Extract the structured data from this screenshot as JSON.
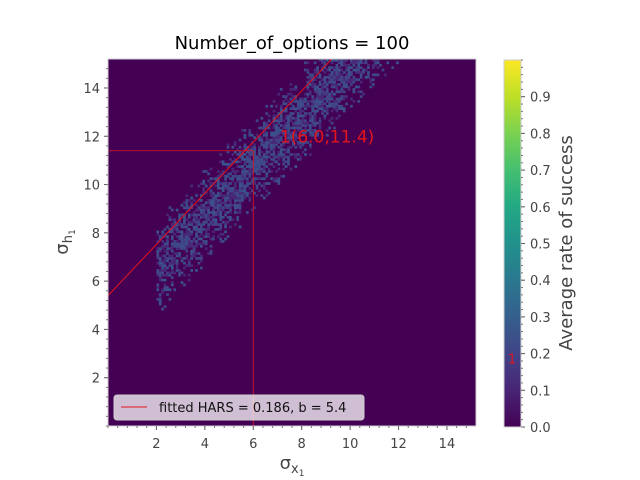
{
  "chart_data": {
    "type": "heatmap",
    "title": "Number_of_options = 100",
    "xlabel_base": "σ",
    "xlabel_sub": "x",
    "xlabel_subsub": "1",
    "ylabel_base": "σ",
    "ylabel_sub": "h",
    "ylabel_subsub": "1",
    "xlim": [
      0.0,
      15.2
    ],
    "ylim": [
      0.0,
      15.2
    ],
    "xticks": [
      2,
      4,
      6,
      8,
      10,
      12,
      14
    ],
    "yticks": [
      2,
      4,
      6,
      8,
      10,
      12,
      14
    ],
    "xtick_labels": [
      "2",
      "4",
      "6",
      "8",
      "10",
      "12",
      "14"
    ],
    "ytick_labels": [
      "2",
      "4",
      "6",
      "8",
      "10",
      "12",
      "14"
    ],
    "colormap": "viridis",
    "background_color": "#440154",
    "cloud_colors": [
      "#472c7a",
      "#3e4a89",
      "#482576",
      "#3b528b",
      "#414487"
    ],
    "density_band": {
      "center_slope": 1.06,
      "center_intercept": 4.4,
      "spread": 1.55,
      "x_min": 2.0,
      "x_max": 12.8
    },
    "fit_line": {
      "slope": 1.06,
      "intercept": 5.4,
      "color": "#e3141c"
    },
    "marker_point": {
      "x": 6.0,
      "y": 11.4
    },
    "annotation": {
      "text": "1(6.0,11.4)",
      "x": 7.1,
      "y": 12.0
    },
    "legend": {
      "label": "fitted HARS = 0.186, b = 5.4",
      "position": "lower-left"
    },
    "colorbar": {
      "label": "Average rate of success",
      "range": [
        0.0,
        1.0
      ],
      "ticks": [
        0.0,
        0.1,
        0.2,
        0.3,
        0.4,
        0.5,
        0.6,
        0.7,
        0.8,
        0.9
      ],
      "tick_labels": [
        "0.0",
        "0.1",
        "0.2",
        "0.3",
        "0.4",
        "0.5",
        "0.6",
        "0.7",
        "0.8",
        "0.9"
      ],
      "marker_value": 0.186,
      "marker_label": "1"
    }
  }
}
